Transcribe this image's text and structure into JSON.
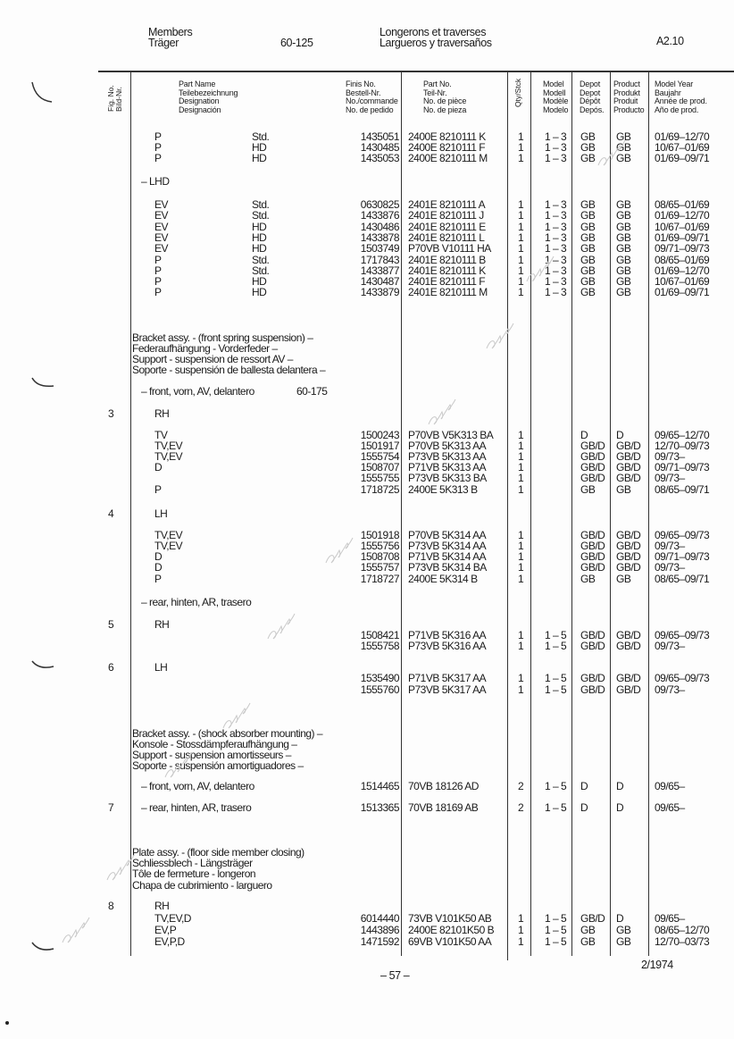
{
  "header": {
    "title_en": "Members",
    "title_de": "Träger",
    "group_no": "60-125",
    "title_fr": "Longerons et traverses",
    "title_es": "Largueros y traversaños",
    "page_code": "A2.10"
  },
  "columns": {
    "fig": [
      "Fig. No.",
      "Bild-Nr."
    ],
    "part_name": [
      "Part Name",
      "Teilebezeichnung",
      "Designation",
      "Designación"
    ],
    "finis": [
      "Finis No.",
      "Bestell-Nr.",
      "No./commande",
      "No. de pedido"
    ],
    "part_no": [
      "Part No.",
      "Teil-Nr.",
      "No. de pièce",
      "No. de pieza"
    ],
    "qty": "Qty/Stck",
    "model": [
      "Model",
      "Modell",
      "Modèle",
      "Modelo"
    ],
    "depot": [
      "Depot",
      "Depot",
      "Dépôt",
      "Depós."
    ],
    "product": [
      "Product",
      "Produkt",
      "Produit",
      "Producto"
    ],
    "year": [
      "Model Year",
      "Baujahr",
      "Année de prod.",
      "Año de prod."
    ]
  },
  "rows": [
    {
      "name": "P",
      "variant": "Std.",
      "finis": "1435051",
      "part": "2400E 8210111 K",
      "qty": "1",
      "model": "1 – 3",
      "depot": "GB",
      "product": "GB",
      "year": "01/69–12/70"
    },
    {
      "name": "P",
      "variant": "HD",
      "finis": "1430485",
      "part": "2400E 8210111 F",
      "qty": "1",
      "model": "1 – 3",
      "depot": "GB",
      "product": "GB",
      "year": "10/67–01/69"
    },
    {
      "name": "P",
      "variant": "HD",
      "finis": "1435053",
      "part": "2400E 8210111 M",
      "qty": "1",
      "model": "1 – 3",
      "depot": "GB",
      "product": "GB",
      "year": "01/69–09/71"
    },
    {
      "name": "– LHD"
    },
    {
      "name": "EV",
      "variant": "Std.",
      "finis": "0630825",
      "part": "2401E 8210111 A",
      "qty": "1",
      "model": "1 – 3",
      "depot": "GB",
      "product": "GB",
      "year": "08/65–01/69"
    },
    {
      "name": "EV",
      "variant": "Std.",
      "finis": "1433876",
      "part": "2401E 8210111 J",
      "qty": "1",
      "model": "1 – 3",
      "depot": "GB",
      "product": "GB",
      "year": "01/69–12/70"
    },
    {
      "name": "EV",
      "variant": "HD",
      "finis": "1430486",
      "part": "2401E 8210111 E",
      "qty": "1",
      "model": "1 – 3",
      "depot": "GB",
      "product": "GB",
      "year": "10/67–01/69"
    },
    {
      "name": "EV",
      "variant": "HD",
      "finis": "1433878",
      "part": "2401E 8210111 L",
      "qty": "1",
      "model": "1 – 3",
      "depot": "GB",
      "product": "GB",
      "year": "01/69–09/71"
    },
    {
      "name": "EV",
      "variant": "HD",
      "finis": "1503749",
      "part": "P70VB V10111 HA",
      "qty": "1",
      "model": "1 – 3",
      "depot": "GB",
      "product": "GB",
      "year": "09/71–09/73"
    },
    {
      "name": "P",
      "variant": "Std.",
      "finis": "1717843",
      "part": "2401E 8210111 B",
      "qty": "1",
      "model": "1 – 3",
      "depot": "GB",
      "product": "GB",
      "year": "08/65–01/69"
    },
    {
      "name": "P",
      "variant": "Std.",
      "finis": "1433877",
      "part": "2401E 8210111 K",
      "qty": "1",
      "model": "1 – 3",
      "depot": "GB",
      "product": "GB",
      "year": "01/69–12/70"
    },
    {
      "name": "P",
      "variant": "HD",
      "finis": "1430487",
      "part": "2401E 8210111 F",
      "qty": "1",
      "model": "1 – 3",
      "depot": "GB",
      "product": "GB",
      "year": "10/67–01/69"
    },
    {
      "name": "P",
      "variant": "HD",
      "finis": "1433879",
      "part": "2401E 8210111 M",
      "qty": "1",
      "model": "1 – 3",
      "depot": "GB",
      "product": "GB",
      "year": "01/69–09/71"
    },
    {
      "name": "Bracket assy. - (front spring suspension) –"
    },
    {
      "name": "Federaufhängung - Vorderfeder –"
    },
    {
      "name": "Support - suspension de ressort AV –"
    },
    {
      "name": "Soporte - suspensión de ballesta delantera –"
    },
    {
      "name": "– front, vorn, AV, delantero",
      "variant": "60-175"
    },
    {
      "fig": "3",
      "name": "RH"
    },
    {
      "name": "TV",
      "finis": "1500243",
      "part": "P70VB V5K313 BA",
      "qty": "1",
      "depot": "D",
      "product": "D",
      "year": "09/65–12/70"
    },
    {
      "name": "TV,EV",
      "finis": "1501917",
      "part": "P70VB 5K313 AA",
      "qty": "1",
      "depot": "GB/D",
      "product": "GB/D",
      "year": "12/70–09/73"
    },
    {
      "name": "TV,EV",
      "finis": "1555754",
      "part": "P73VB 5K313 AA",
      "qty": "1",
      "depot": "GB/D",
      "product": "GB/D",
      "year": "09/73–"
    },
    {
      "name": "D",
      "finis": "1508707",
      "part": "P71VB 5K313 AA",
      "qty": "1",
      "depot": "GB/D",
      "product": "GB/D",
      "year": "09/71–09/73"
    },
    {
      "finis": "1555755",
      "part": "P73VB 5K313 BA",
      "qty": "1",
      "depot": "GB/D",
      "product": "GB/D",
      "year": "09/73–"
    },
    {
      "name": "P",
      "finis": "1718725",
      "part": "2400E 5K313 B",
      "qty": "1",
      "depot": "GB",
      "product": "GB",
      "year": "08/65–09/71"
    },
    {
      "fig": "4",
      "name": "LH"
    },
    {
      "name": "TV,EV",
      "finis": "1501918",
      "part": "P70VB 5K314 AA",
      "qty": "1",
      "depot": "GB/D",
      "product": "GB/D",
      "year": "09/65–09/73"
    },
    {
      "name": "TV,EV",
      "finis": "1555756",
      "part": "P73VB 5K314 AA",
      "qty": "1",
      "depot": "GB/D",
      "product": "GB/D",
      "year": "09/73–"
    },
    {
      "name": "D",
      "finis": "1508708",
      "part": "P71VB 5K314 AA",
      "qty": "1",
      "depot": "GB/D",
      "product": "GB/D",
      "year": "09/71–09/73"
    },
    {
      "name": "D",
      "finis": "1555757",
      "part": "P73VB 5K314 BA",
      "qty": "1",
      "depot": "GB/D",
      "product": "GB/D",
      "year": "09/73–"
    },
    {
      "name": "P",
      "finis": "1718727",
      "part": "2400E 5K314 B",
      "qty": "1",
      "depot": "GB",
      "product": "GB",
      "year": "08/65–09/71"
    },
    {
      "name": "– rear, hinten, AR, trasero"
    },
    {
      "fig": "5",
      "name": "RH"
    },
    {
      "finis": "1508421",
      "part": "P71VB 5K316 AA",
      "qty": "1",
      "model": "1 – 5",
      "depot": "GB/D",
      "product": "GB/D",
      "year": "09/65–09/73"
    },
    {
      "finis": "1555758",
      "part": "P73VB 5K316 AA",
      "qty": "1",
      "model": "1 – 5",
      "depot": "GB/D",
      "product": "GB/D",
      "year": "09/73–"
    },
    {
      "fig": "6",
      "name": "LH"
    },
    {
      "finis": "1535490",
      "part": "P71VB 5K317 AA",
      "qty": "1",
      "model": "1 – 5",
      "depot": "GB/D",
      "product": "GB/D",
      "year": "09/65–09/73"
    },
    {
      "finis": "1555760",
      "part": "P73VB 5K317 AA",
      "qty": "1",
      "model": "1 – 5",
      "depot": "GB/D",
      "product": "GB/D",
      "year": "09/73–"
    },
    {
      "name": "Bracket assy. - (shock absorber mounting) –"
    },
    {
      "name": "Konsole - Stossdämpferaufhängung –"
    },
    {
      "name": "Support - suspension amortisseurs –"
    },
    {
      "name": "Soporte - suspensión amortiguadores –"
    },
    {
      "name": "– front, vorn, AV, delantero",
      "finis": "1514465",
      "part": "70VB 18126 AD",
      "qty": "2",
      "model": "1 – 5",
      "depot": "D",
      "product": "D",
      "year": "09/65–"
    },
    {
      "fig": "7",
      "name": "– rear, hinten, AR, trasero",
      "finis": "1513365",
      "part": "70VB 18169 AB",
      "qty": "2",
      "model": "1 – 5",
      "depot": "D",
      "product": "D",
      "year": "09/65–"
    },
    {
      "name": "Plate assy. - (floor side member closing)"
    },
    {
      "name": "Schliessblech - Längsträger"
    },
    {
      "name": "Tôle de fermeture - longeron"
    },
    {
      "name": "Chapa de cubrimiento - larguero"
    },
    {
      "fig": "8",
      "name": "RH"
    },
    {
      "name": "TV,EV,D",
      "finis": "6014440",
      "part": "73VB V101K50 AB",
      "qty": "1",
      "model": "1 – 5",
      "depot": "GB/D",
      "product": "D",
      "year": "09/65–"
    },
    {
      "name": "EV,P",
      "finis": "1443896",
      "part": "2400E 82101K50 B",
      "qty": "1",
      "model": "1 – 5",
      "depot": "GB",
      "product": "GB",
      "year": "08/65–12/70"
    },
    {
      "name": "EV,P,D",
      "finis": "1471592",
      "part": "69VB V101K50 AA",
      "qty": "1",
      "model": "1 – 5",
      "depot": "GB",
      "product": "GB",
      "year": "12/70–03/73"
    }
  ],
  "footer": {
    "page_number": "– 57 –",
    "date": "2/1974"
  },
  "watermark": "Capri.PL"
}
